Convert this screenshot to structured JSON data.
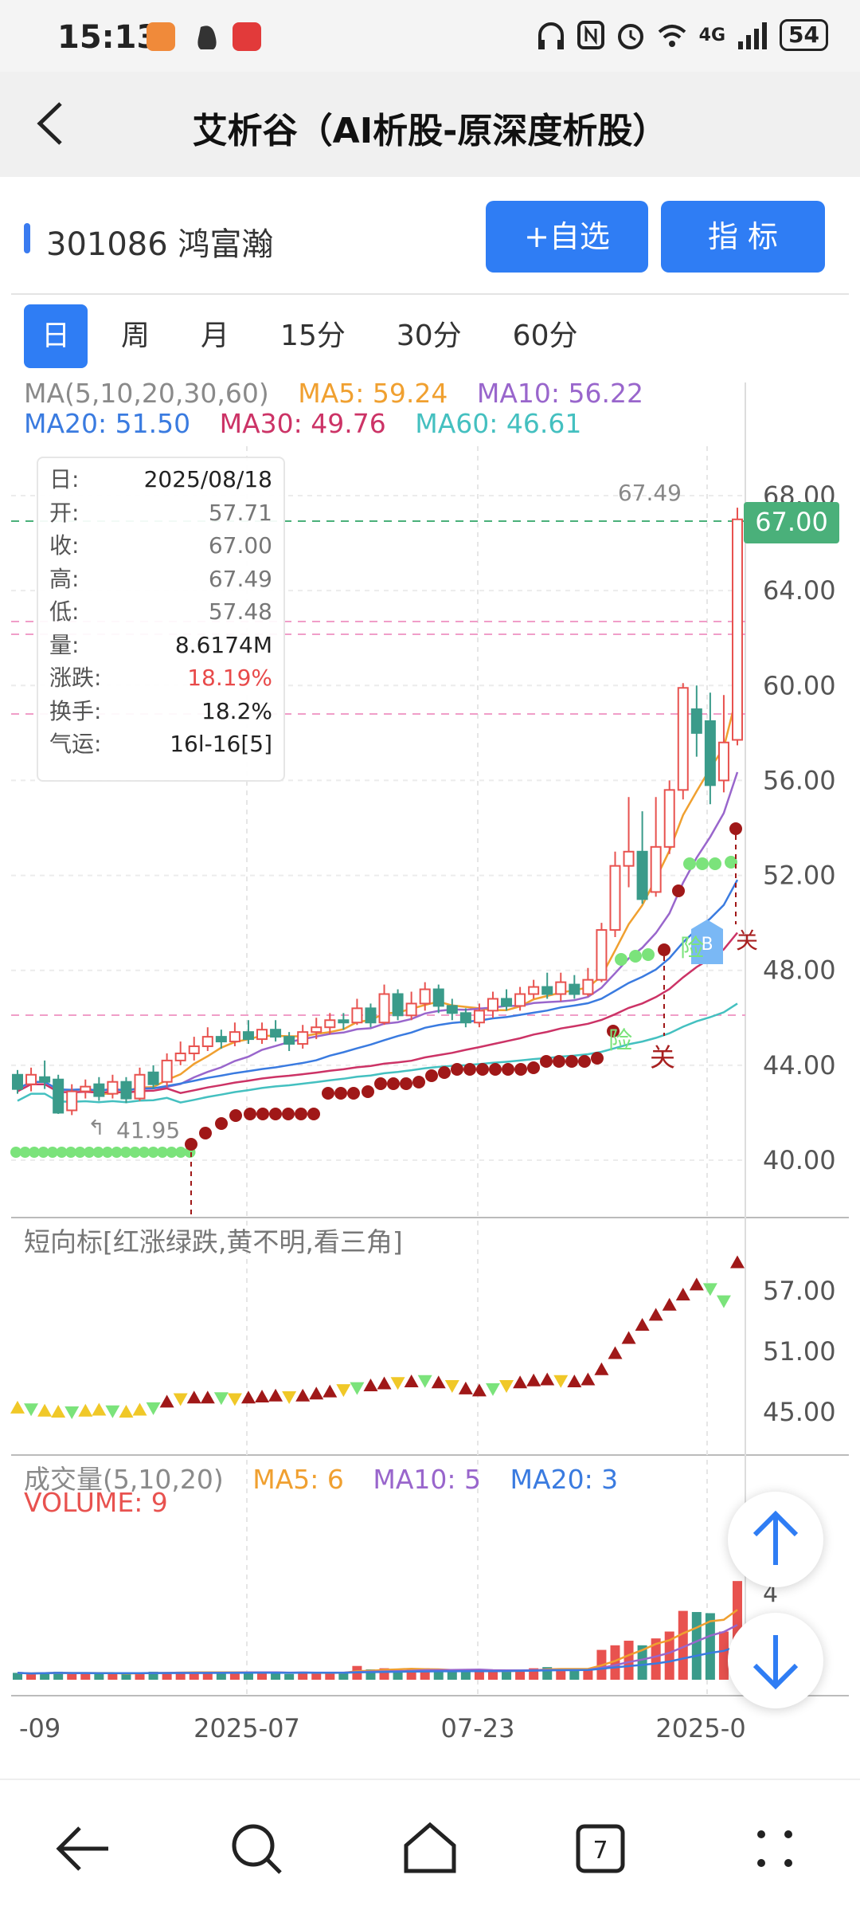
{
  "status_bar": {
    "time": "15:13",
    "network": "4G",
    "battery": "54",
    "icons": [
      "app-badge-icon",
      "qq-icon",
      "app-store-icon",
      "headphone-icon",
      "nfc-icon",
      "alarm-icon",
      "wifi-icon",
      "signal-icon"
    ]
  },
  "header": {
    "back_icon": "back-chevron-icon",
    "title": "艾析谷（AI析股-原深度析股）"
  },
  "stock": {
    "code_name": "301086 鸿富瀚",
    "add_watch_label": "+自选",
    "indicator_label": "指  标"
  },
  "period_tabs": [
    "日",
    "周",
    "月",
    "15分",
    "30分",
    "60分"
  ],
  "active_tab": "日",
  "ma_legend": {
    "title": "MA(5,10,20,30,60)",
    "ma5": "MA5: 59.24",
    "ma10": "MA10: 56.22",
    "ma20": "MA20: 51.50",
    "ma30": "MA30: 49.76",
    "ma60": "MA60: 46.61"
  },
  "info_box": {
    "rows": [
      {
        "k": "日:",
        "v": "2025/08/18",
        "style": "normal"
      },
      {
        "k": "开:",
        "v": "57.71",
        "style": "muted"
      },
      {
        "k": "收:",
        "v": "67.00",
        "style": "muted"
      },
      {
        "k": "高:",
        "v": "67.49",
        "style": "muted"
      },
      {
        "k": "低:",
        "v": "57.48",
        "style": "muted"
      },
      {
        "k": "量:",
        "v": "8.6174M",
        "style": "normal"
      },
      {
        "k": "涨跌:",
        "v": "18.19%",
        "style": "red"
      },
      {
        "k": "换手:",
        "v": "18.2%",
        "style": "normal"
      },
      {
        "k": "气运:",
        "v": "16l-16[5]",
        "style": "normal"
      }
    ]
  },
  "price_chart": {
    "y_ticks": [
      "68.00",
      "64.00",
      "60.00",
      "56.00",
      "52.00",
      "48.00",
      "44.00",
      "40.00"
    ],
    "current_price": "67.00",
    "high_marker": "67.49",
    "low_marker": "41.95",
    "annotations": {
      "buy": "B",
      "guan": "关",
      "xian1": "险",
      "xian2": "险",
      "tail": "关"
    }
  },
  "short_indicator": {
    "title": "短向标[红涨绿跌,黄不明,看三角]",
    "y_ticks": [
      "57.00",
      "51.00",
      "45.00"
    ]
  },
  "volume_panel": {
    "title": "成交量(5,10,20)",
    "ma5": "MA5: 6",
    "ma10": "MA10: 5",
    "ma20": "MA20: 3",
    "volume": "VOLUME: 9",
    "y_tick": "4"
  },
  "x_axis": [
    "-09",
    "2025-07",
    "07-23",
    "2025-0"
  ],
  "float_buttons": {
    "up": "arrow-up-icon",
    "down": "arrow-down-icon"
  },
  "nav_bar": {
    "tab_count": "7",
    "icons": [
      "back-arrow-icon",
      "search-icon",
      "home-icon",
      "tabs-icon",
      "more-icon"
    ]
  },
  "colors": {
    "up": "#e8524f",
    "down": "#3a9b8a",
    "accent": "#2f7df4",
    "ma5": "#f0a030",
    "ma10": "#9966cc",
    "ma20": "#3a7be0",
    "ma30": "#cc3366",
    "ma60": "#44c0c0"
  }
}
